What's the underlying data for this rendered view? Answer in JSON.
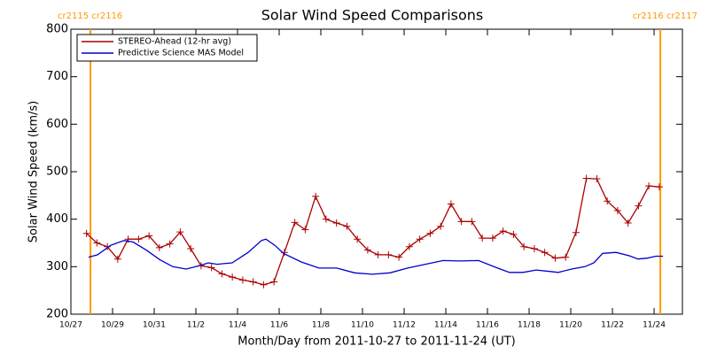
{
  "chart_data": {
    "type": "line",
    "title": "Solar Wind Speed Comparisons",
    "xlabel": "Month/Day from 2011-10-27 to 2011-11-24 (UT)",
    "ylabel": "Solar Wind Speed (km/s)",
    "xlim": [
      0,
      29.36
    ],
    "ylim": [
      200,
      800
    ],
    "xticks": [
      {
        "value": 0,
        "label": "10/27"
      },
      {
        "value": 2,
        "label": "10/29"
      },
      {
        "value": 4,
        "label": "10/31"
      },
      {
        "value": 6,
        "label": "11/2"
      },
      {
        "value": 8,
        "label": "11/4"
      },
      {
        "value": 10,
        "label": "11/6"
      },
      {
        "value": 12,
        "label": "11/8"
      },
      {
        "value": 14,
        "label": "11/10"
      },
      {
        "value": 16,
        "label": "11/12"
      },
      {
        "value": 18,
        "label": "11/14"
      },
      {
        "value": 20,
        "label": "11/16"
      },
      {
        "value": 22,
        "label": "11/18"
      },
      {
        "value": 24,
        "label": "11/20"
      },
      {
        "value": 26,
        "label": "11/22"
      },
      {
        "value": 28,
        "label": "11/24"
      }
    ],
    "yticks": [
      200,
      300,
      400,
      500,
      600,
      700,
      800
    ],
    "legend": "upper left",
    "markers": [
      {
        "x": 0.94,
        "label": "cr2115 cr2116",
        "color": "#ff9900"
      },
      {
        "x": 28.3,
        "label": "cr2116 cr2117",
        "color": "#ff9900"
      }
    ],
    "series": [
      {
        "name": "STEREO-Ahead (12-hr avg)",
        "color": "#aa0000",
        "symbol": "+",
        "x": [
          0.75,
          1.25,
          1.75,
          2.25,
          2.75,
          3.25,
          3.75,
          4.25,
          4.75,
          5.25,
          5.75,
          6.25,
          6.75,
          7.25,
          7.75,
          8.25,
          8.75,
          9.25,
          9.75,
          10.25,
          10.75,
          11.25,
          11.75,
          12.25,
          12.75,
          13.25,
          13.75,
          14.25,
          14.75,
          15.25,
          15.75,
          16.25,
          16.75,
          17.25,
          17.75,
          18.25,
          18.75,
          19.25,
          19.75,
          20.25,
          20.75,
          21.25,
          21.75,
          22.25,
          22.75,
          23.25,
          23.75,
          24.25,
          24.75,
          25.25,
          25.75,
          26.25,
          26.75,
          27.25,
          27.75,
          28.25
        ],
        "values": [
          370,
          350,
          342,
          316,
          358,
          358,
          365,
          340,
          348,
          373,
          338,
          302,
          298,
          285,
          278,
          272,
          268,
          262,
          268,
          330,
          393,
          378,
          448,
          400,
          392,
          385,
          358,
          335,
          325,
          325,
          320,
          342,
          358,
          370,
          385,
          432,
          395,
          395,
          360,
          360,
          375,
          368,
          342,
          338,
          330,
          318,
          320,
          372,
          486,
          485,
          438,
          418,
          392,
          428,
          470,
          468
        ]
      },
      {
        "name": "Predictive Science MAS Model",
        "color": "#0000cc",
        "x": [
          0.85,
          1.28,
          1.91,
          2.55,
          2.98,
          3.62,
          4.26,
          4.89,
          5.53,
          6.17,
          6.6,
          7.02,
          7.74,
          8.51,
          9.15,
          9.36,
          9.79,
          10.21,
          11.06,
          11.91,
          12.77,
          13.62,
          14.47,
          15.32,
          16.17,
          17.02,
          17.87,
          18.72,
          19.57,
          20.43,
          21.06,
          21.7,
          22.34,
          22.98,
          23.4,
          24.04,
          24.68,
          25.11,
          25.53,
          26.17,
          26.81,
          27.23,
          27.66,
          28.09,
          28.43
        ],
        "values": [
          320,
          325,
          345,
          355,
          352,
          335,
          315,
          300,
          295,
          302,
          308,
          305,
          308,
          330,
          355,
          358,
          345,
          328,
          310,
          297,
          297,
          287,
          284,
          287,
          297,
          305,
          313,
          312,
          313,
          298,
          288,
          288,
          293,
          290,
          288,
          295,
          300,
          308,
          328,
          330,
          323,
          316,
          318,
          322,
          322
        ]
      }
    ]
  }
}
